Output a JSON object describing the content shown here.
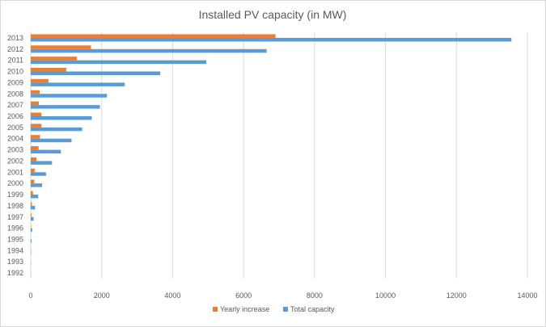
{
  "chart_data": {
    "type": "bar",
    "orientation": "horizontal",
    "title": "Installed PV capacity (in MW)",
    "categories": [
      "1992",
      "1993",
      "1994",
      "1995",
      "1996",
      "1997",
      "1998",
      "1999",
      "2000",
      "2001",
      "2002",
      "2003",
      "2004",
      "2005",
      "2006",
      "2007",
      "2008",
      "2009",
      "2010",
      "2011",
      "2012",
      "2013"
    ],
    "series": [
      {
        "name": "Yearly increase",
        "color": "#ed7d31",
        "values": [
          0,
          1,
          2,
          3,
          10,
          20,
          30,
          60,
          100,
          110,
          160,
          220,
          260,
          300,
          300,
          230,
          250,
          500,
          1000,
          1300,
          1700,
          6900
        ]
      },
      {
        "name": "Total capacity",
        "color": "#5b9bd5",
        "values": [
          5,
          8,
          12,
          22,
          40,
          80,
          120,
          210,
          320,
          430,
          600,
          850,
          1150,
          1450,
          1720,
          1950,
          2150,
          2650,
          3650,
          4950,
          6650,
          13550
        ]
      }
    ],
    "xlim": [
      0,
      14000
    ],
    "xticks": [
      "0",
      "2000",
      "4000",
      "6000",
      "8000",
      "10000",
      "12000",
      "14000"
    ],
    "grid": "vertical",
    "legend": "bottom"
  }
}
